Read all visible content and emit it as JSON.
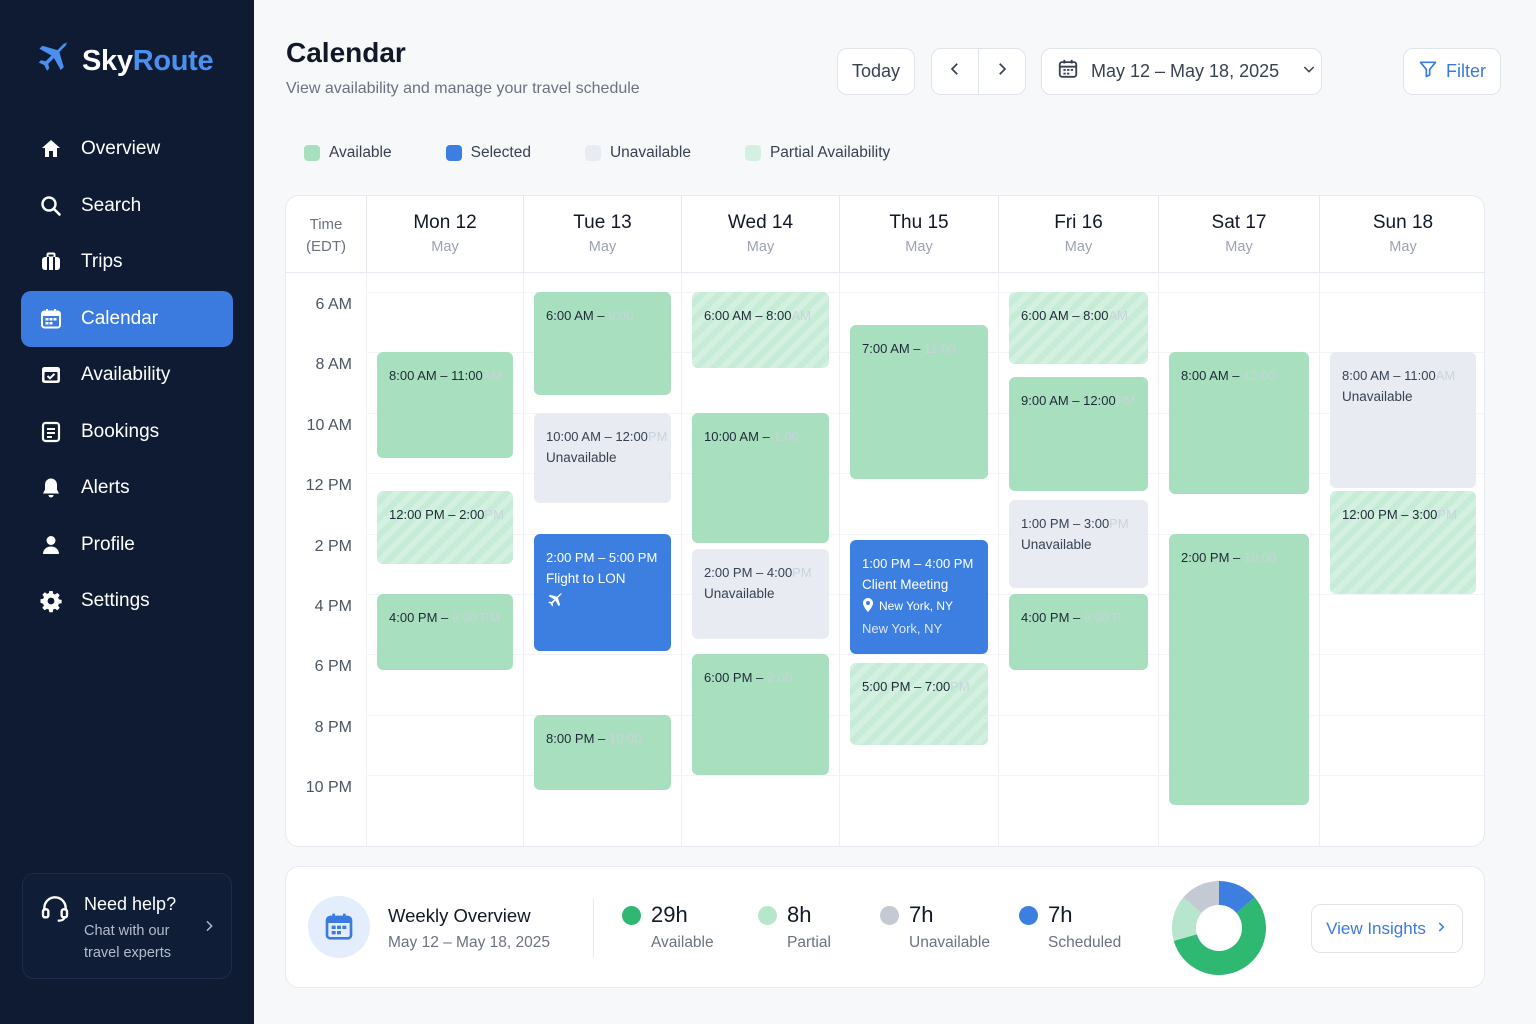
{
  "app": {
    "name_part1": "Sky",
    "name_part2": "Route"
  },
  "sidebar": {
    "items": [
      {
        "label": "Overview",
        "icon": "home-icon",
        "active": false
      },
      {
        "label": "Search",
        "icon": "search-icon",
        "active": false
      },
      {
        "label": "Trips",
        "icon": "luggage-icon",
        "active": false
      },
      {
        "label": "Calendar",
        "icon": "calendar-icon",
        "active": true
      },
      {
        "label": "Availability",
        "icon": "calendar-check-icon",
        "active": false
      },
      {
        "label": "Bookings",
        "icon": "document-icon",
        "active": false
      },
      {
        "label": "Alerts",
        "icon": "bell-icon",
        "active": false
      },
      {
        "label": "Profile",
        "icon": "user-icon",
        "active": false
      },
      {
        "label": "Settings",
        "icon": "gear-icon",
        "active": false
      }
    ],
    "help": {
      "title": "Need help?",
      "subtitle": "Chat with our travel experts"
    }
  },
  "header": {
    "title": "Calendar",
    "subtitle": "View availability and manage your travel schedule",
    "today_label": "Today",
    "date_range": "May 12 – May 18, 2025",
    "filter_label": "Filter"
  },
  "legend": [
    {
      "label": "Available",
      "color": "#a8dfbf"
    },
    {
      "label": "Selected",
      "color": "#3d7fe0"
    },
    {
      "label": "Unavailable",
      "color": "#e8ecf2"
    },
    {
      "label": "Partial Availability",
      "color": "#d4f0e0"
    }
  ],
  "calendar": {
    "time_header": "Time",
    "timezone": "(EDT)",
    "time_labels": [
      "6 AM",
      "8 AM",
      "10 AM",
      "12 PM",
      "2 PM",
      "4 PM",
      "6 PM",
      "8 PM",
      "10 PM"
    ],
    "days": [
      {
        "name": "Mon 12",
        "month": "May"
      },
      {
        "name": "Tue 13",
        "month": "May"
      },
      {
        "name": "Wed 14",
        "month": "May"
      },
      {
        "name": "Thu 15",
        "month": "May"
      },
      {
        "name": "Fri 16",
        "month": "May"
      },
      {
        "name": "Sat 17",
        "month": "May"
      },
      {
        "name": "Sun 18",
        "month": "May"
      }
    ],
    "events": [
      {
        "day": 0,
        "start": 8,
        "end": 11.5,
        "type": "available",
        "t1": "8:00 AM – 11:00",
        "t2": "AM"
      },
      {
        "day": 0,
        "start": 12.6,
        "end": 15,
        "type": "partial",
        "t1": "12:00 PM – 2:00",
        "t2": "PM"
      },
      {
        "day": 0,
        "start": 16,
        "end": 18.5,
        "type": "available",
        "t1": "4:00 PM – ",
        "t2": "6:00 PM"
      },
      {
        "day": 1,
        "start": 6,
        "end": 9.4,
        "type": "available",
        "t1": "6:00 AM – ",
        "t2": "9:00"
      },
      {
        "day": 1,
        "start": 10,
        "end": 13,
        "type": "unavailable",
        "t1": "10:00 AM – 12:00",
        "t2": "PM",
        "sub": "Unavailable"
      },
      {
        "day": 1,
        "start": 14,
        "end": 17.9,
        "type": "selected",
        "t1": "2:00 PM – 5:00 PM",
        "t2": "",
        "sub": "Flight to LON",
        "plane": true
      },
      {
        "day": 1,
        "start": 20,
        "end": 22.5,
        "type": "available",
        "t1": "8:00 PM – ",
        "t2": "10:00"
      },
      {
        "day": 2,
        "start": 6,
        "end": 8.5,
        "type": "partial",
        "t1": "6:00 AM – 8:00",
        "t2": "AM"
      },
      {
        "day": 2,
        "start": 10,
        "end": 14.3,
        "type": "available",
        "t1": "10:00 AM – ",
        "t2": "1:00"
      },
      {
        "day": 2,
        "start": 14.5,
        "end": 17.5,
        "type": "unavailable",
        "t1": "2:00 PM – 4:00",
        "t2": "PM",
        "sub": "Unavailable"
      },
      {
        "day": 2,
        "start": 18,
        "end": 22,
        "type": "available",
        "t1": "6:00 PM – ",
        "t2": "2:00"
      },
      {
        "day": 3,
        "start": 7.1,
        "end": 12.2,
        "type": "available",
        "t1": "7:00 AM – ",
        "t2": "11:00"
      },
      {
        "day": 3,
        "start": 14.2,
        "end": 18,
        "type": "selected",
        "t1": "1:00 PM – 4:00 PM",
        "t2": "",
        "sub": "Client Meeting",
        "loc": "New York, NY",
        "loc2": "New York, NY"
      },
      {
        "day": 3,
        "start": 18.3,
        "end": 21,
        "type": "partial",
        "t1": "5:00 PM – 7:00",
        "t2": "PM"
      },
      {
        "day": 4,
        "start": 6,
        "end": 8.4,
        "type": "partial",
        "t1": "6:00 AM – 8:00",
        "t2": "AM"
      },
      {
        "day": 4,
        "start": 8.8,
        "end": 12.6,
        "type": "available",
        "t1": "9:00 AM – 12:00",
        "t2": "PM"
      },
      {
        "day": 4,
        "start": 12.9,
        "end": 15.8,
        "type": "unavailable",
        "t1": "1:00 PM – 3:00",
        "t2": "PM",
        "sub": "Unavailable"
      },
      {
        "day": 4,
        "start": 16,
        "end": 18.5,
        "type": "available",
        "t1": "4:00 PM – ",
        "t2": "6:00 P"
      },
      {
        "day": 5,
        "start": 8,
        "end": 12.7,
        "type": "available",
        "t1": "8:00 AM – ",
        "t2": "12:00"
      },
      {
        "day": 5,
        "start": 14,
        "end": 23,
        "type": "available",
        "t1": "2:00 PM – ",
        "t2": "10:00"
      },
      {
        "day": 6,
        "start": 8,
        "end": 12.5,
        "type": "unavailable",
        "t1": "8:00 AM – 11:00",
        "t2": "AM",
        "sub": "Unavailable"
      },
      {
        "day": 6,
        "start": 12.6,
        "end": 16,
        "type": "partial",
        "t1": "12:00 PM – 3:00",
        "t2": "PM"
      }
    ]
  },
  "overview": {
    "title": "Weekly Overview",
    "range": "May 12 – May 18, 2025",
    "stats": [
      {
        "value": "29h",
        "label": "Available",
        "color": "#2eb872",
        "hours": 29
      },
      {
        "value": "8h",
        "label": "Partial",
        "color": "#b8e6cc",
        "hours": 8
      },
      {
        "value": "7h",
        "label": "Unavailable",
        "color": "#c4cad3",
        "hours": 7
      },
      {
        "value": "7h",
        "label": "Scheduled",
        "color": "#3d7fe0",
        "hours": 7
      }
    ],
    "insights_label": "View Insights"
  }
}
